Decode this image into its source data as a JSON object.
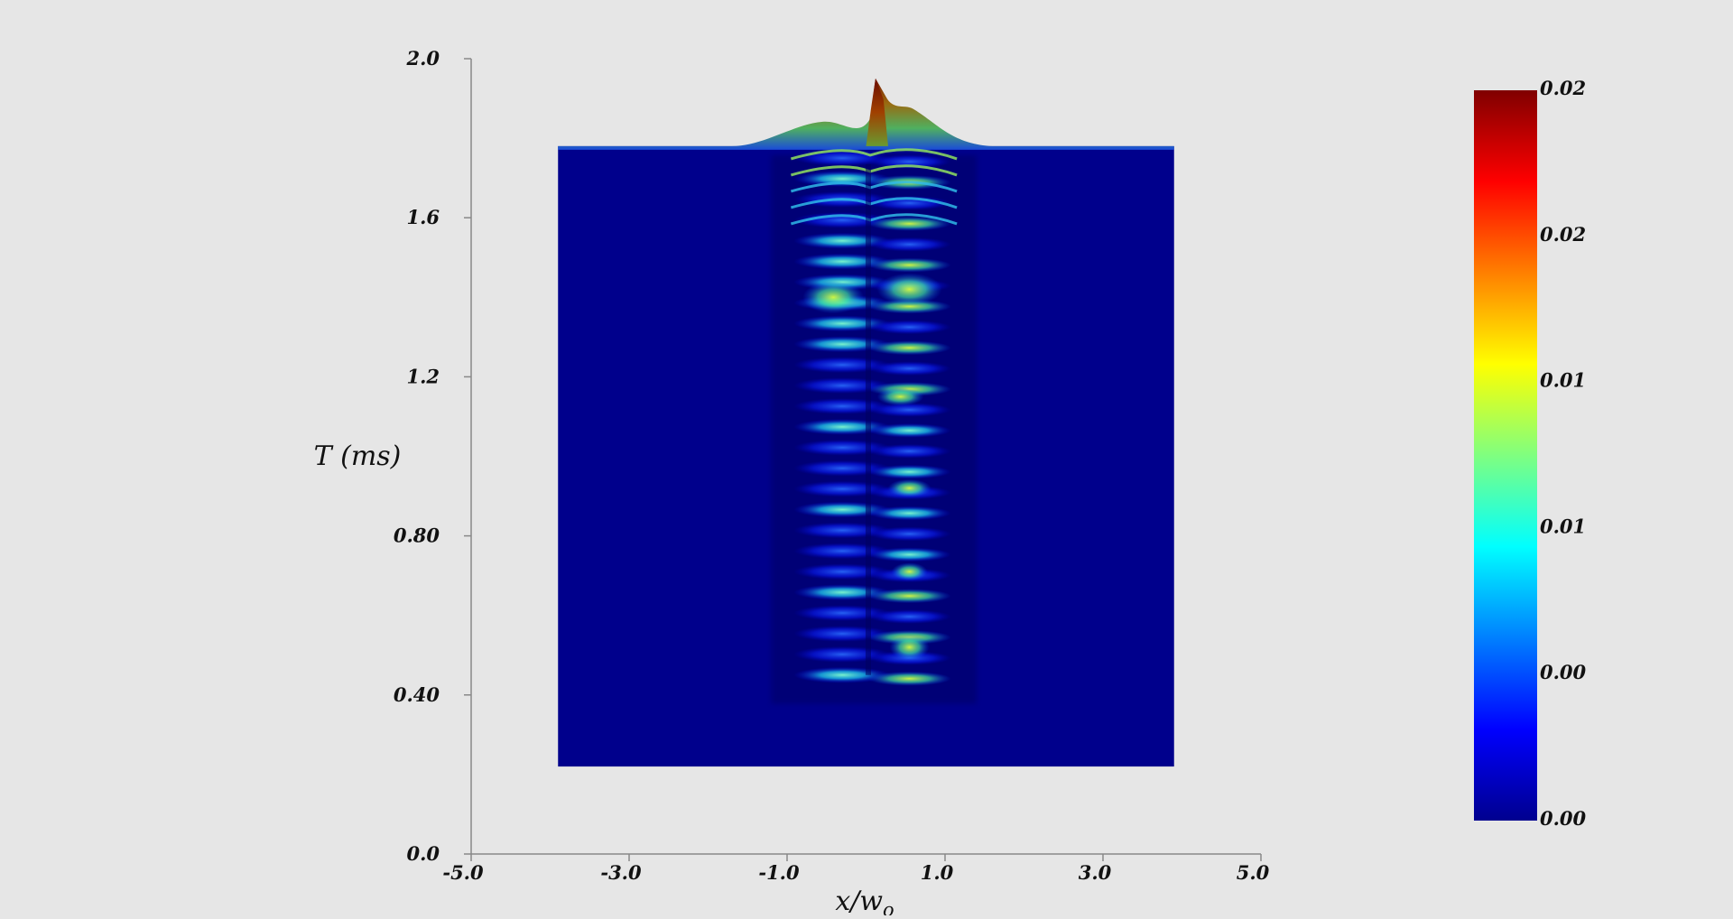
{
  "chart_data": {
    "type": "heatmap",
    "title": "",
    "xlabel": "x/w",
    "xlabel_subscript": "o",
    "ylabel": "T (ms)",
    "xlim": [
      -5.0,
      5.0
    ],
    "ylim": [
      0.0,
      2.0
    ],
    "x_ticks": [
      "-5.0",
      "-3.0",
      "-1.0",
      "1.0",
      "3.0",
      "5.0"
    ],
    "y_ticks": [
      "0.0",
      "0.40",
      "0.80",
      "1.2",
      "1.6",
      "2.0"
    ],
    "x_tick_values": [
      -5.0,
      -3.0,
      -1.0,
      1.0,
      3.0,
      5.0
    ],
    "y_tick_values": [
      0.0,
      0.4,
      0.8,
      1.2,
      1.6,
      2.0
    ],
    "field_domain": {
      "x": [
        -3.9,
        3.9
      ],
      "t": [
        0.22,
        1.78
      ]
    },
    "colorbar": {
      "colormap": "jet",
      "range": [
        0.0,
        0.02
      ],
      "tick_labels": [
        "0.02",
        "0.02",
        "0.01",
        "0.01",
        "0.00",
        "0.00"
      ],
      "tick_values": [
        0.02,
        0.016,
        0.012,
        0.008,
        0.004,
        0.0
      ]
    },
    "grid": false,
    "legend": "colorbar-right",
    "colors": {
      "background": "#e6e6e6",
      "field_base": "#00008c",
      "axis": "#888888"
    }
  }
}
